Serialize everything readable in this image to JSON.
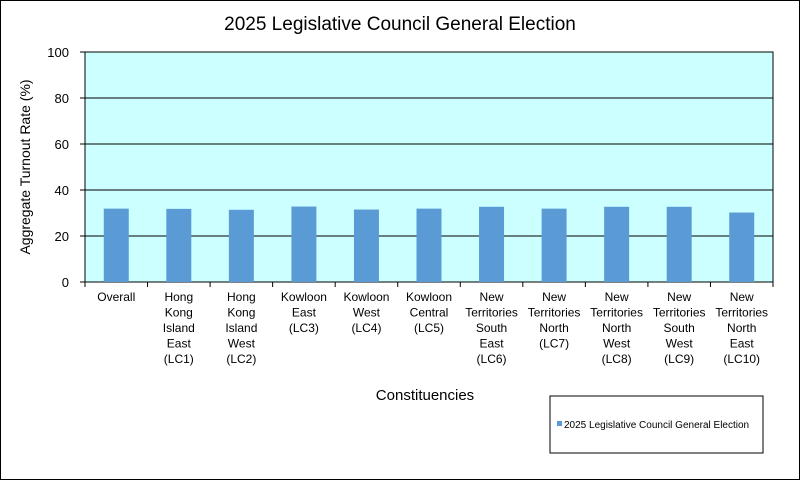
{
  "colors": {
    "plot_bg": "#ccffff",
    "bar": "#5b9bd5",
    "grid": "#000000",
    "frame": "#000000"
  },
  "chart_data": {
    "type": "bar",
    "title": "2025 Legislative Council General Election",
    "xlabel": "Constituencies",
    "ylabel": "Aggregate Turnout  Rate (%)",
    "ylim": [
      0,
      100
    ],
    "yticks": [
      0,
      20,
      40,
      60,
      80,
      100
    ],
    "grid": true,
    "legend_position": "bottom-right",
    "categories": [
      [
        "Overall"
      ],
      [
        "Hong",
        "Kong",
        "Island",
        "East",
        "(LC1)"
      ],
      [
        "Hong",
        "Kong",
        "Island",
        "West",
        "(LC2)"
      ],
      [
        "Kowloon",
        "East",
        "(LC3)"
      ],
      [
        "Kowloon",
        "West",
        "(LC4)"
      ],
      [
        "Kowloon",
        "Central",
        "(LC5)"
      ],
      [
        "New",
        "Territories",
        "South",
        "East",
        "(LC6)"
      ],
      [
        "New",
        "Territories",
        "North",
        "(LC7)"
      ],
      [
        "New",
        "Territories",
        "North",
        "West",
        "(LC8)"
      ],
      [
        "New",
        "Territories",
        "South",
        "West",
        "(LC9)"
      ],
      [
        "New",
        "Territories",
        "North",
        "East",
        "(LC10)"
      ]
    ],
    "series": [
      {
        "name": "2025 Legislative Council General Election",
        "values": [
          31.9,
          31.8,
          31.4,
          32.8,
          31.5,
          31.9,
          32.7,
          31.9,
          32.7,
          32.7,
          30.2
        ]
      }
    ]
  }
}
